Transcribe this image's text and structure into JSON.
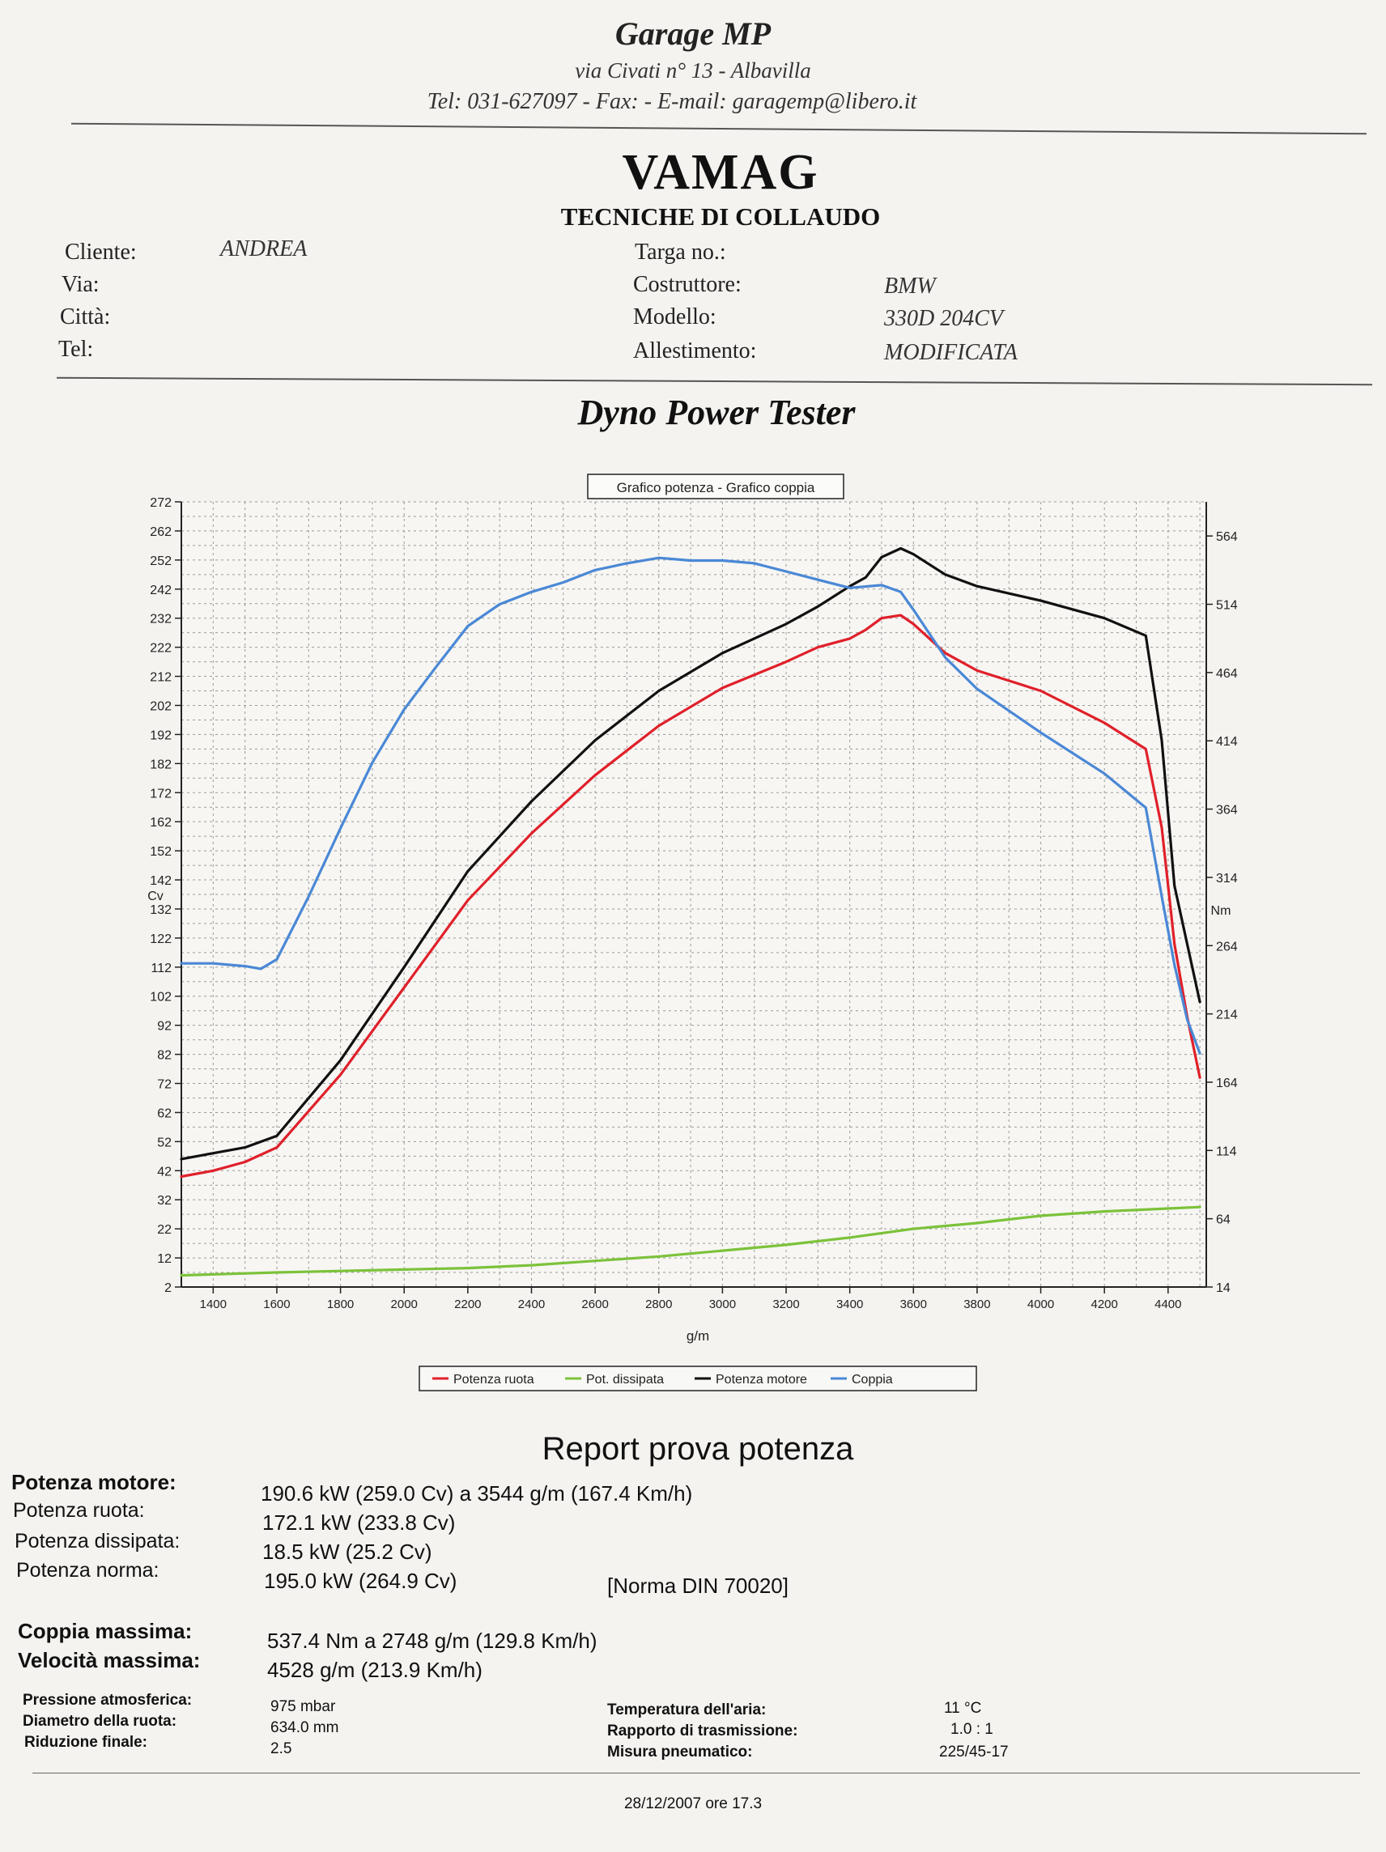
{
  "garage": {
    "name": "Garage MP",
    "address": "via Civati n° 13 - Albavilla",
    "contacts": "Tel: 031-627097 - Fax:  - E-mail: garagemp@libero.it"
  },
  "brand": {
    "title": "VAMAG",
    "subtitle": "TECNICHE DI COLLAUDO"
  },
  "customer": {
    "cliente_label": "Cliente:",
    "cliente_value": "ANDREA",
    "via_label": "Via:",
    "citta_label": "Città:",
    "tel_label": "Tel:",
    "targa_label": "Targa no.:",
    "costruttore_label": "Costruttore:",
    "costruttore_value": "BMW",
    "modello_label": "Modello:",
    "modello_value": "330D  204CV",
    "allestimento_label": "Allestimento:",
    "allestimento_value": "MODIFICATA"
  },
  "dyno_title": "Dyno Power Tester",
  "chart_data": {
    "type": "line",
    "title": "Grafico potenza - Grafico coppia",
    "xlabel": "g/m",
    "ylabel_left": "Cv",
    "ylabel_right": "Nm",
    "xlim": [
      1300,
      4520
    ],
    "ylim_left": [
      2,
      272
    ],
    "ylim_right": [
      14,
      589
    ],
    "x_ticks": [
      "1400",
      "1600",
      "1800",
      "2000",
      "2200",
      "2400",
      "2600",
      "2800",
      "3000",
      "3200",
      "3400",
      "3600",
      "3800",
      "4000",
      "4200",
      "4400"
    ],
    "y_left_ticks": [
      "272",
      "262",
      "252",
      "242",
      "232",
      "222",
      "212",
      "202",
      "192",
      "182",
      "172",
      "162",
      "152",
      "142",
      "132",
      "122",
      "112",
      "102",
      "92",
      "82",
      "72",
      "62",
      "52",
      "42",
      "32",
      "22",
      "12",
      "2"
    ],
    "y_right_ticks": [
      "564",
      "514",
      "464",
      "414",
      "364",
      "314",
      "264",
      "214",
      "164",
      "114",
      "64",
      "14"
    ],
    "grid": true,
    "legend_position": "bottom",
    "series": [
      {
        "name": "Potenza ruota",
        "color": "#e0202a",
        "axis": "left",
        "x": [
          1300,
          1400,
          1500,
          1600,
          1800,
          2000,
          2200,
          2400,
          2600,
          2800,
          3000,
          3200,
          3300,
          3400,
          3450,
          3500,
          3560,
          3600,
          3700,
          3800,
          4000,
          4200,
          4330,
          4380,
          4420,
          4460,
          4500
        ],
        "y": [
          40,
          42,
          45,
          50,
          75,
          105,
          135,
          158,
          178,
          195,
          208,
          217,
          222,
          225,
          228,
          232,
          233,
          230,
          220,
          214,
          207,
          196,
          187,
          160,
          120,
          95,
          74
        ]
      },
      {
        "name": "Pot. dissipata",
        "color": "#7cc23a",
        "axis": "left",
        "x": [
          1300,
          1600,
          1800,
          2000,
          2200,
          2400,
          2600,
          2800,
          3000,
          3200,
          3400,
          3600,
          3800,
          4000,
          4200,
          4400,
          4500
        ],
        "y": [
          6,
          7,
          7.5,
          8,
          8.5,
          9.5,
          11,
          12.5,
          14.5,
          16.5,
          19,
          22,
          24,
          26.5,
          28,
          29,
          29.5
        ]
      },
      {
        "name": "Potenza motore",
        "color": "#111111",
        "axis": "left",
        "x": [
          1300,
          1400,
          1500,
          1600,
          1800,
          2000,
          2200,
          2400,
          2600,
          2800,
          3000,
          3200,
          3300,
          3400,
          3450,
          3500,
          3560,
          3600,
          3700,
          3800,
          4000,
          4200,
          4330,
          4380,
          4420,
          4460,
          4500
        ],
        "y": [
          46,
          48,
          50,
          54,
          80,
          112,
          145,
          169,
          190,
          207,
          220,
          230,
          236,
          243,
          246,
          253,
          256,
          254,
          247,
          243,
          238,
          232,
          226,
          190,
          140,
          120,
          100
        ]
      },
      {
        "name": "Coppia",
        "color": "#4a88d6",
        "axis": "right",
        "x": [
          1300,
          1400,
          1500,
          1550,
          1600,
          1700,
          1800,
          1900,
          2000,
          2100,
          2200,
          2300,
          2400,
          2500,
          2600,
          2700,
          2800,
          2900,
          3000,
          3100,
          3200,
          3300,
          3400,
          3500,
          3560,
          3600,
          3700,
          3800,
          4000,
          4200,
          4330,
          4380,
          4420,
          4460,
          4500
        ],
        "y": [
          251,
          251,
          249,
          247,
          254,
          300,
          350,
          398,
          437,
          468,
          498,
          514,
          523,
          530,
          539,
          544,
          548,
          546,
          546,
          544,
          538,
          532,
          526,
          528,
          523,
          510,
          475,
          452,
          420,
          390,
          365,
          300,
          250,
          210,
          185
        ]
      }
    ]
  },
  "report": {
    "title": "Report prova potenza",
    "potenza_motore_label": "Potenza motore:",
    "potenza_motore_value": "190.6 kW (259.0 Cv) a 3544 g/m (167.4 Km/h)",
    "potenza_ruota_label": "Potenza ruota:",
    "potenza_ruota_value": "172.1 kW (233.8 Cv)",
    "potenza_dissipata_label": "Potenza dissipata:",
    "potenza_dissipata_value": "18.5 kW (25.2 Cv)",
    "potenza_norma_label": "Potenza norma:",
    "potenza_norma_value": "195.0 kW (264.9 Cv)",
    "norma": "[Norma DIN 70020]",
    "coppia_label": "Coppia massima:",
    "coppia_value": "537.4 Nm a 2748 g/m (129.8 Km/h)",
    "velocita_label": "Velocità massima:",
    "velocita_value": "4528 g/m (213.9 Km/h)",
    "pressione_label": "Pressione atmosferica:",
    "pressione_value": "975 mbar",
    "diametro_label": "Diametro della ruota:",
    "diametro_value": "634.0 mm",
    "riduzione_label": "Riduzione finale:",
    "riduzione_value": "2.5",
    "temperatura_label": "Temperatura dell'aria:",
    "temperatura_value": "11 °C",
    "rapporto_label": "Rapporto di trasmissione:",
    "rapporto_value": "1.0 : 1",
    "pneumatico_label": "Misura pneumatico:",
    "pneumatico_value": "225/45-17",
    "date": "28/12/2007 ore 17.3"
  }
}
